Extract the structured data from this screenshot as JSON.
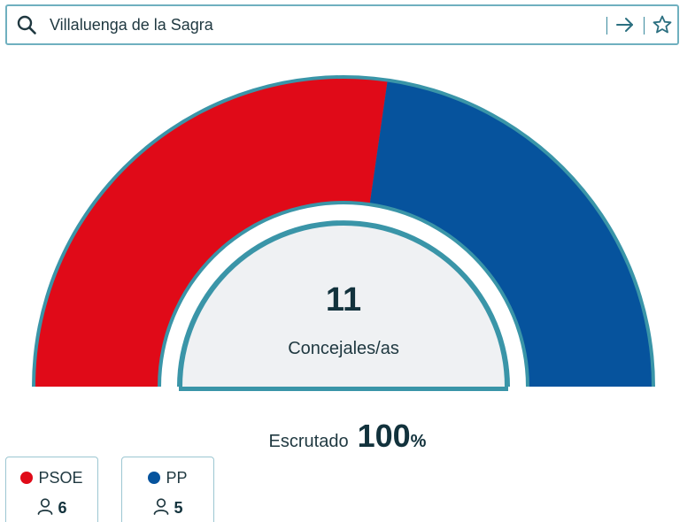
{
  "search": {
    "value": "Villaluenga de la Sagra",
    "icon": "search-icon",
    "submit_icon": "arrow-right-icon",
    "favorite_icon": "star-icon"
  },
  "hemicycle": {
    "total_seats": "11",
    "caption": "Concejales/as",
    "outline_color": "#3a95a8",
    "inner_fill": "#eff1f3"
  },
  "scrutiny": {
    "label": "Escrutado",
    "value": "100",
    "unit": "%"
  },
  "parties": [
    {
      "name": "PSOE",
      "seats": "6",
      "seat_count": 6,
      "color": "#e00a18"
    },
    {
      "name": "PP",
      "seats": "5",
      "seat_count": 5,
      "color": "#06539d"
    }
  ]
}
